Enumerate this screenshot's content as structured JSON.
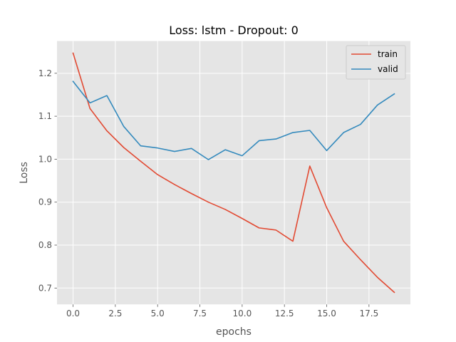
{
  "chart_data": {
    "type": "line",
    "title": "Loss: lstm - Dropout: 0",
    "xlabel": "epochs",
    "ylabel": "Loss",
    "x": [
      0,
      1,
      2,
      3,
      4,
      5,
      6,
      7,
      8,
      9,
      10,
      11,
      12,
      13,
      14,
      15,
      16,
      17,
      18,
      19
    ],
    "series": [
      {
        "name": "train",
        "color": "#e24a33",
        "values": [
          1.247,
          1.118,
          1.066,
          1.027,
          0.995,
          0.964,
          0.941,
          0.92,
          0.9,
          0.883,
          0.862,
          0.84,
          0.835,
          0.809,
          0.984,
          0.887,
          0.809,
          0.766,
          0.725,
          0.69
        ]
      },
      {
        "name": "valid",
        "color": "#348abd",
        "values": [
          1.181,
          1.131,
          1.148,
          1.076,
          1.031,
          1.026,
          1.018,
          1.025,
          0.999,
          1.022,
          1.008,
          1.043,
          1.047,
          1.062,
          1.067,
          1.02,
          1.062,
          1.081,
          1.126,
          1.152
        ]
      }
    ],
    "xlim": [
      -0.95,
      19.95
    ],
    "ylim": [
      0.662,
      1.275
    ],
    "xticks": [
      0,
      2.5,
      5,
      7.5,
      10,
      12.5,
      15,
      17.5
    ],
    "xtick_labels": [
      "0.0",
      "2.5",
      "5.0",
      "7.5",
      "10.0",
      "12.5",
      "15.0",
      "17.5"
    ],
    "yticks": [
      0.7,
      0.8,
      0.9,
      1.0,
      1.1,
      1.2
    ],
    "ytick_labels": [
      "0.7",
      "0.8",
      "0.9",
      "1.0",
      "1.1",
      "1.2"
    ],
    "grid": true,
    "legend_position": "top-right",
    "style": {
      "background": "#e5e5e5",
      "grid_color": "#ffffff",
      "tick_color": "#555555"
    }
  }
}
